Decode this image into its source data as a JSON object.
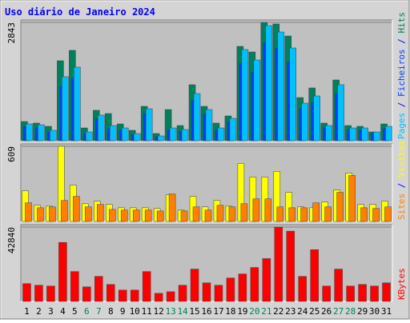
{
  "title": "Uso diário de Janeiro 2024",
  "legend_separator": " / ",
  "chart_data": [
    {
      "type": "bar",
      "ylim": [
        0,
        2843
      ],
      "yticks": [
        2843
      ],
      "series": [
        {
          "name": "Hits",
          "color": "#00805c",
          "values": [
            461,
            423,
            346,
            1921,
            2171,
            307,
            730,
            653,
            403,
            250,
            826,
            173,
            749,
            365,
            1345,
            826,
            423,
            595,
            2267,
            2132,
            2843,
            2805,
            2516,
            1037,
            1268,
            423,
            1460,
            365,
            346,
            211,
            403
          ]
        },
        {
          "name": "Ficheiros",
          "color": "#0040ff",
          "values": [
            342,
            326,
            212,
            1306,
            1502,
            179,
            523,
            310,
            261,
            147,
            653,
            98,
            261,
            229,
            963,
            637,
            261,
            457,
            1861,
            1649,
            2351,
            2220,
            1894,
            768,
            915,
            310,
            1143,
            261,
            261,
            179,
            294
          ]
        },
        {
          "name": "Pages",
          "color": "#00c0ff",
          "values": [
            403,
            384,
            250,
            1537,
            1767,
            211,
            615,
            365,
            307,
            173,
            768,
            115,
            307,
            269,
            1133,
            749,
            307,
            538,
            2190,
            1940,
            2766,
            2612,
            2228,
            903,
            1076,
            365,
            1345,
            307,
            307,
            211,
            346
          ]
        }
      ]
    },
    {
      "type": "bar",
      "ylim": [
        0,
        609
      ],
      "yticks": [
        609
      ],
      "series": [
        {
          "name": "Visitas",
          "color": "#ffff00",
          "values": [
            249,
            131,
            124,
            609,
            295,
            144,
            164,
            138,
            111,
            111,
            111,
            105,
            216,
            92,
            203,
            118,
            170,
            124,
            471,
            360,
            360,
            406,
            236,
            118,
            111,
            157,
            255,
            393,
            138,
            138,
            164
          ]
        },
        {
          "name": "Sites",
          "color": "#ff8000",
          "values": [
            151,
            111,
            118,
            170,
            203,
            118,
            138,
            98,
            92,
            92,
            92,
            85,
            223,
            85,
            118,
            92,
            131,
            118,
            144,
            183,
            183,
            118,
            111,
            111,
            151,
            118,
            236,
            373,
            111,
            105,
            118
          ]
        }
      ]
    },
    {
      "type": "bar",
      "ylim": [
        0,
        42840
      ],
      "yticks": [
        42840
      ],
      "categories": [
        "1",
        "2",
        "3",
        "4",
        "5",
        "6",
        "7",
        "8",
        "9",
        "10",
        "11",
        "12",
        "13",
        "14",
        "15",
        "16",
        "17",
        "18",
        "19",
        "20",
        "21",
        "22",
        "23",
        "24",
        "25",
        "26",
        "27",
        "28",
        "29",
        "30",
        "31"
      ],
      "category_colors": [
        "#000000",
        "#000000",
        "#000000",
        "#000000",
        "#000000",
        "#00805c",
        "#00805c",
        "#000000",
        "#000000",
        "#000000",
        "#000000",
        "#000000",
        "#00805c",
        "#00805c",
        "#000000",
        "#000000",
        "#000000",
        "#000000",
        "#000000",
        "#00805c",
        "#00805c",
        "#000000",
        "#000000",
        "#000000",
        "#000000",
        "#000000",
        "#00805c",
        "#00805c",
        "#000000",
        "#000000",
        "#000000"
      ],
      "series": [
        {
          "name": "KBytes",
          "color": "#ff0000",
          "values": [
            10244,
            9313,
            8847,
            33993,
            17229,
            8382,
            14435,
            9779,
            6519,
            6519,
            17229,
            4657,
            5588,
            9313,
            18626,
            10710,
            9313,
            13504,
            15832,
            19557,
            24680,
            42840,
            40511,
            14435,
            29802,
            8847,
            18626,
            8847,
            9779,
            8847,
            10710
          ]
        }
      ]
    }
  ]
}
